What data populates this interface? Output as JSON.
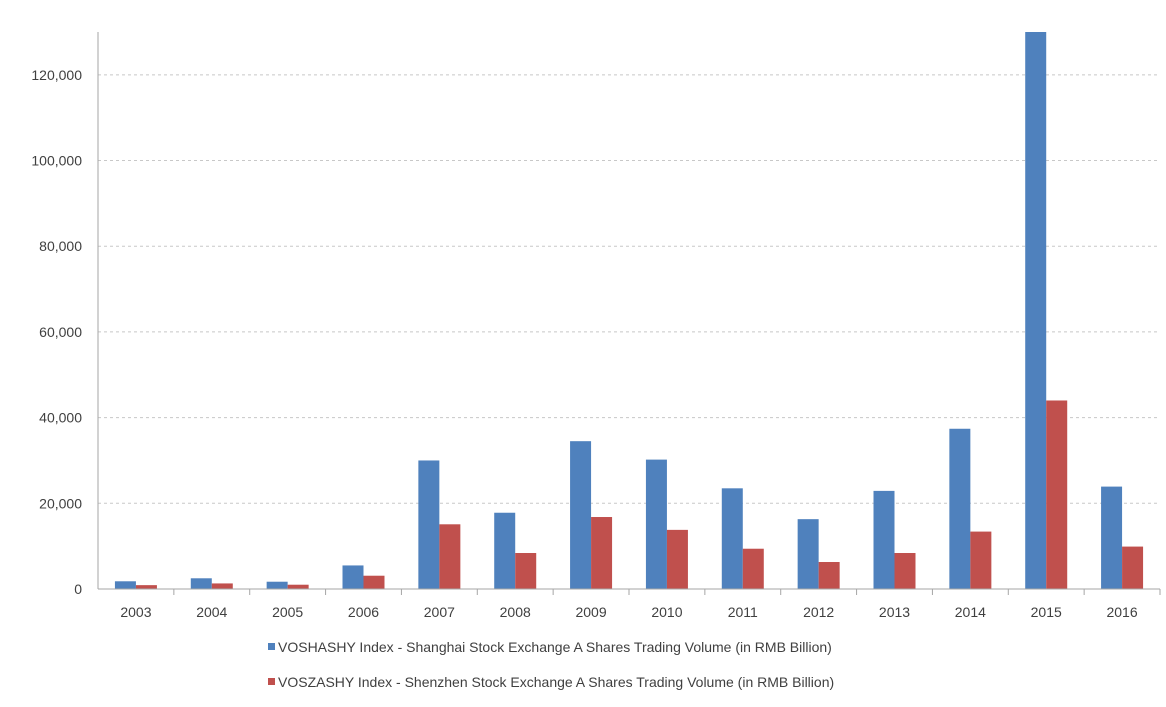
{
  "chart_data": {
    "type": "bar",
    "categories": [
      "2003",
      "2004",
      "2005",
      "2006",
      "2007",
      "2008",
      "2009",
      "2010",
      "2011",
      "2012",
      "2013",
      "2014",
      "2015",
      "2016"
    ],
    "series": [
      {
        "name": "VOSHASHY Index - Shanghai Stock Exchange A Shares Trading Volume (in RMB Billion)",
        "color": "#4f81bd",
        "values": [
          1800,
          2500,
          1700,
          5500,
          30000,
          17800,
          34500,
          30200,
          23500,
          16300,
          22900,
          37400,
          130000,
          23900
        ]
      },
      {
        "name": "VOSZASHY Index - Shenzhen Stock Exchange A Shares Trading Volume (in RMB Billion)",
        "color": "#c0504d",
        "values": [
          900,
          1300,
          1000,
          3100,
          15100,
          8400,
          16800,
          13800,
          9400,
          6300,
          8400,
          13400,
          44000,
          9900
        ]
      }
    ],
    "ylim": [
      0,
      130000
    ],
    "yticks": [
      0,
      20000,
      40000,
      60000,
      80000,
      100000,
      120000
    ],
    "ytick_labels": [
      "0",
      "20,000",
      "40,000",
      "60,000",
      "80,000",
      "100,000",
      "120,000"
    ],
    "grid": "horizontal dashed",
    "legend_position": "bottom",
    "title": "",
    "xlabel": "",
    "ylabel": ""
  }
}
